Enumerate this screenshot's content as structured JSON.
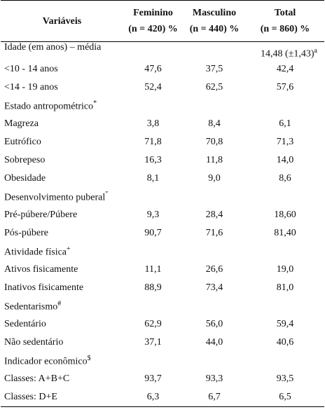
{
  "table": {
    "header": [
      {
        "title": "Variáveis"
      },
      {
        "title": "Feminino",
        "subtitle": "(n = 420) %"
      },
      {
        "title": "Masculino",
        "subtitle": "(n = 440) %"
      },
      {
        "title": "Total",
        "subtitle": "(n = 860) %"
      }
    ],
    "rows": [
      {
        "label": "Idade (em anos) – média",
        "total": "14,48 (±1,43)",
        "total_sup": "a"
      },
      {
        "label": "<10 - 14 anos",
        "values": [
          "47,6",
          "37,5",
          "42,4"
        ]
      },
      {
        "label": "<14 - 19 anos",
        "values": [
          "52,4",
          "62,5",
          "57,6"
        ]
      },
      {
        "label": "Estado antropométrico",
        "sup": "*"
      },
      {
        "label": "Magreza",
        "values": [
          "3,8",
          "8,4",
          "6,1"
        ]
      },
      {
        "label": "Eutrófico",
        "values": [
          "71,8",
          "70,8",
          "71,3"
        ]
      },
      {
        "label": "Sobrepeso",
        "values": [
          "16,3",
          "11,8",
          "14,0"
        ]
      },
      {
        "label": "Obesidade",
        "values": [
          "8,1",
          "9,0",
          "8,6"
        ]
      },
      {
        "label": "Desenvolvimento puberal",
        "sup": "″"
      },
      {
        "label": "Pré-púbere/Púbere",
        "values": [
          "9,3",
          "28,4",
          "18,60"
        ]
      },
      {
        "label": "Pós-púbere",
        "values": [
          "90,7",
          "71,6",
          "81,40"
        ]
      },
      {
        "label": "Atividade física",
        "sup": "+"
      },
      {
        "label": "Ativos fisicamente",
        "values": [
          "11,1",
          "26,6",
          "19,0"
        ]
      },
      {
        "label": "Inativos fisicamente",
        "values": [
          "88,9",
          "73,4",
          "81,0"
        ]
      },
      {
        "label": "Sedentarismo",
        "sup": "#"
      },
      {
        "label": "Sedentário",
        "values": [
          "62,9",
          "56,0",
          "59,4"
        ]
      },
      {
        "label": "Não sedentário",
        "values": [
          "37,1",
          "44,0",
          "40,6"
        ]
      },
      {
        "label": "Indicador econômico",
        "sup": "$"
      },
      {
        "label": "Classes: A+B+C",
        "values": [
          "93,7",
          "93,3",
          "93,5"
        ]
      },
      {
        "label": "Classes: D+E",
        "values": [
          "6,3",
          "6,7",
          "6,5"
        ]
      }
    ]
  }
}
